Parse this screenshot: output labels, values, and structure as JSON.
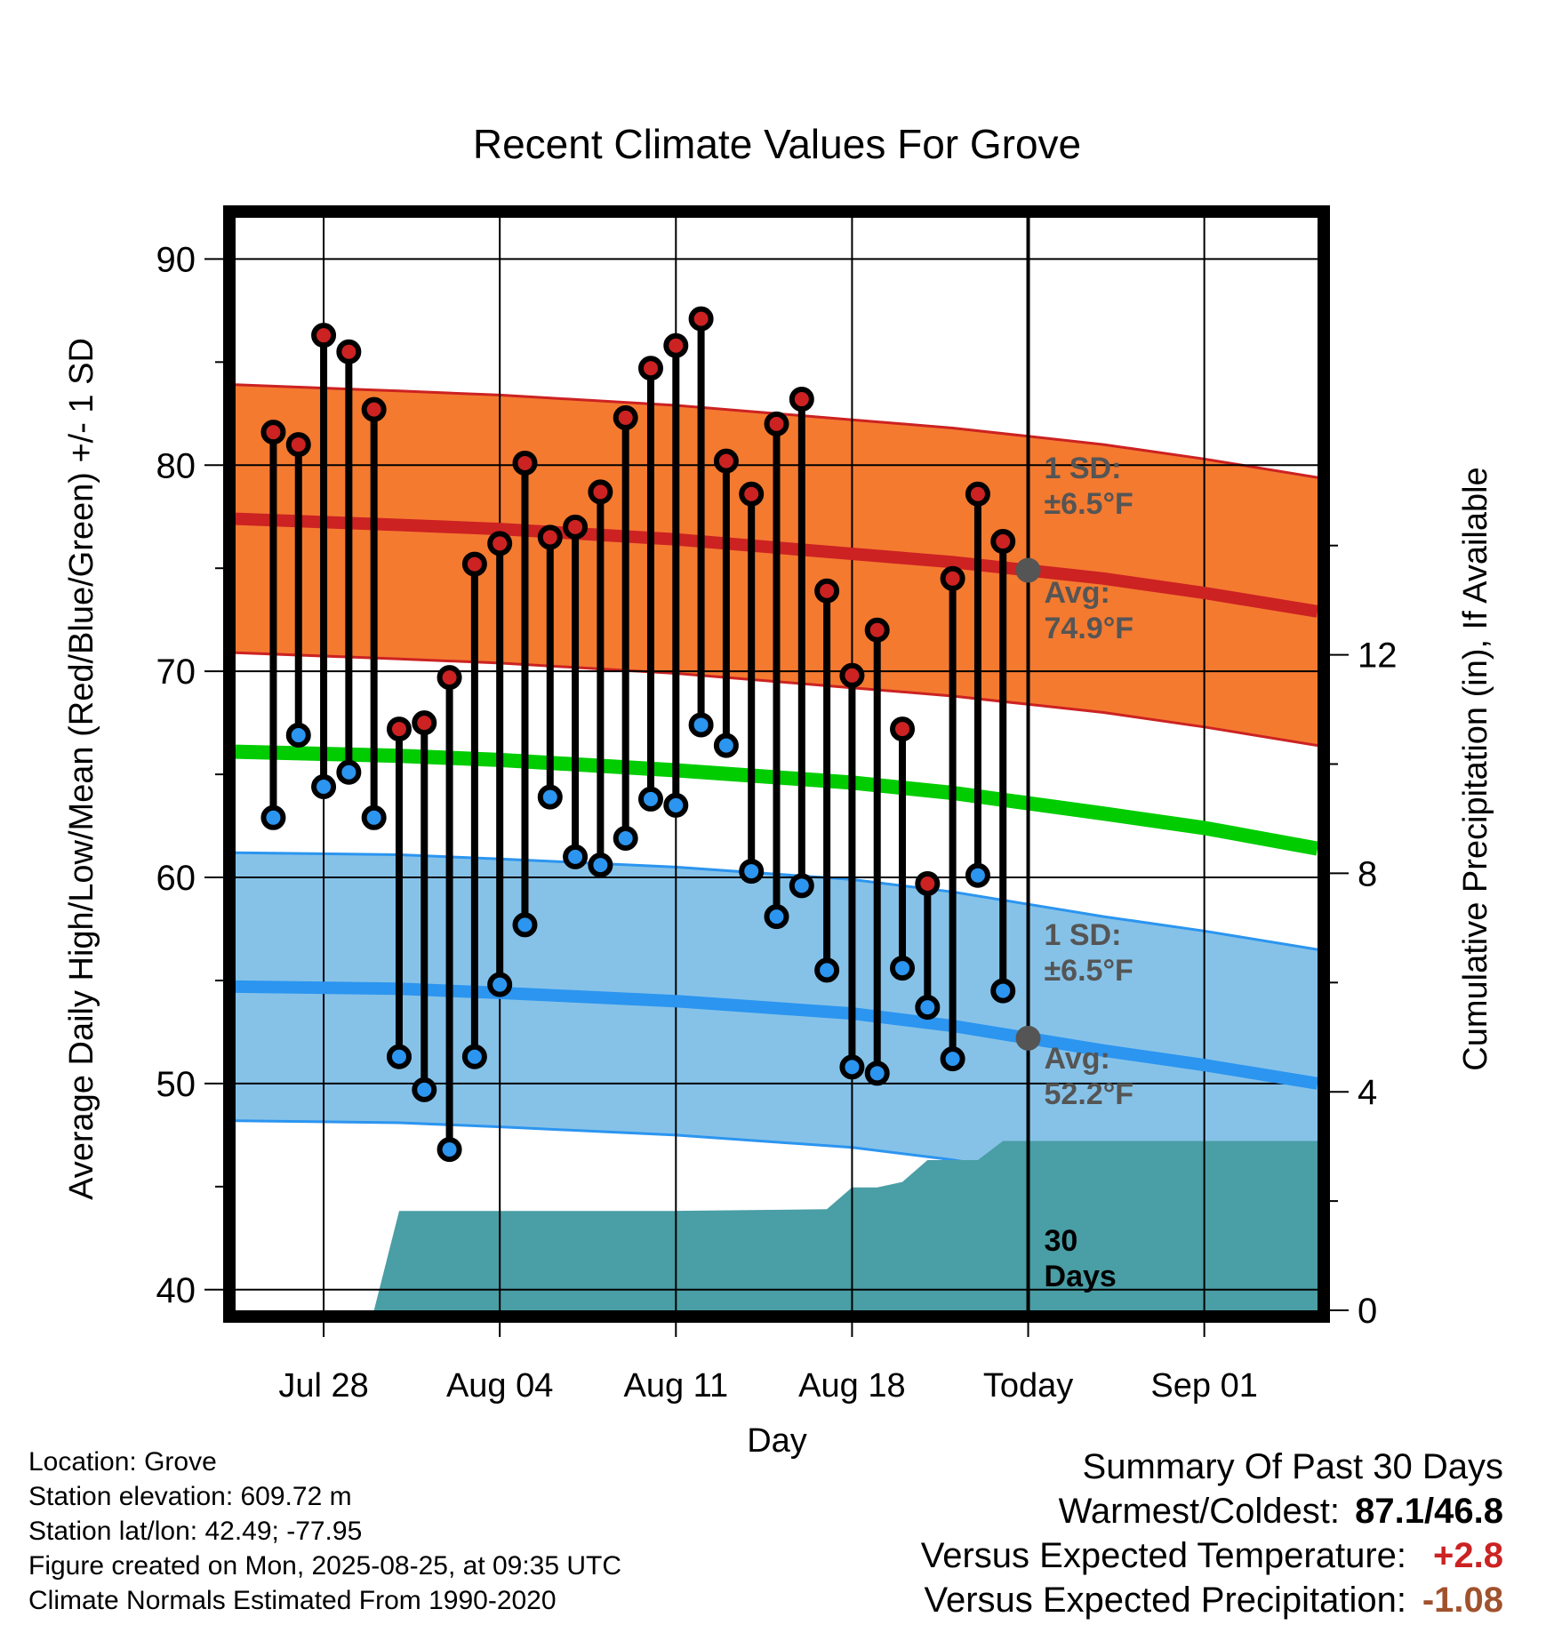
{
  "chart_data": {
    "type": "line",
    "title": "Recent Climate Values For Grove",
    "xlabel": "Day",
    "ylabel": "Average Daily High/Low/Mean (Red/Blue/Green) +/- 1 SD",
    "y2label": "Cumulative Precipitation (in), If Available",
    "ylim": [
      39,
      92
    ],
    "y2lim": [
      0,
      20
    ],
    "yticks": [
      40,
      50,
      60,
      70,
      80,
      90
    ],
    "y2ticks": [
      0,
      4,
      8,
      12
    ],
    "xlim": [
      -3.5,
      39.5
    ],
    "xticks": [
      {
        "day": 0,
        "label": "Jul 28"
      },
      {
        "day": 7,
        "label": "Aug 04"
      },
      {
        "day": 14,
        "label": "Aug 11"
      },
      {
        "day": 21,
        "label": "Aug 18"
      },
      {
        "day": 28,
        "label": "Today"
      },
      {
        "day": 35,
        "label": "Sep 01"
      }
    ],
    "today_day": 28,
    "grid": true,
    "daily": {
      "x": [
        -2,
        -1,
        0,
        1,
        2,
        3,
        4,
        5,
        6,
        7,
        8,
        9,
        10,
        11,
        12,
        13,
        14,
        15,
        16,
        17,
        18,
        19,
        20,
        21,
        22,
        23,
        24,
        25,
        26,
        27
      ],
      "high": [
        81.6,
        81.0,
        86.3,
        85.5,
        82.7,
        67.2,
        67.5,
        69.7,
        75.2,
        76.2,
        80.1,
        76.5,
        77.0,
        78.7,
        82.3,
        84.7,
        85.8,
        87.1,
        80.2,
        78.6,
        82.0,
        83.2,
        73.9,
        69.8,
        72.0,
        67.2,
        59.7,
        74.5,
        78.6,
        76.3
      ],
      "low": [
        62.9,
        66.9,
        64.4,
        65.1,
        62.9,
        51.3,
        49.7,
        46.8,
        51.3,
        54.8,
        57.7,
        63.9,
        61.0,
        60.6,
        61.9,
        63.8,
        63.5,
        67.4,
        66.4,
        60.3,
        58.1,
        59.6,
        55.5,
        50.8,
        50.5,
        55.6,
        53.7,
        51.2,
        60.1,
        54.5
      ]
    },
    "normals": {
      "x": [
        -3.5,
        3,
        7,
        14,
        21,
        25,
        28,
        31,
        35,
        39.5
      ],
      "avg_high": [
        77.4,
        77.1,
        76.9,
        76.4,
        75.7,
        75.3,
        74.9,
        74.5,
        73.8,
        72.9
      ],
      "avg_low": [
        54.7,
        54.6,
        54.4,
        54.0,
        53.4,
        52.8,
        52.2,
        51.6,
        50.9,
        50.0
      ],
      "avg_mean": [
        66.1,
        65.9,
        65.7,
        65.2,
        64.6,
        64.1,
        63.6,
        63.1,
        62.4,
        61.4
      ],
      "high_sd": 6.5,
      "low_sd": 6.5
    },
    "precip": {
      "x": [
        -3.5,
        2,
        3,
        14,
        20,
        21,
        22,
        23,
        24,
        25,
        26,
        27,
        39.5
      ],
      "cumulative": [
        0,
        0,
        1.82,
        1.82,
        1.85,
        2.25,
        2.25,
        2.35,
        2.75,
        2.75,
        2.75,
        3.1,
        3.1
      ]
    },
    "annotations": [
      {
        "line1": "1 SD:",
        "line2": "±6.5°F"
      },
      {
        "line1": "Avg:",
        "line2": "74.9°F"
      },
      {
        "line1": "1 SD:",
        "line2": "±6.5°F"
      },
      {
        "line1": "Avg:",
        "line2": "52.2°F"
      },
      {
        "line1": "30",
        "line2": "Days"
      }
    ],
    "colors": {
      "high": "#cc2222",
      "low": "#2b95f0",
      "mean": "#00cc00",
      "high_band": "#f47a30",
      "low_band": "#86c2e8",
      "precip": "#4a9ea5",
      "annotation": "#555555"
    }
  },
  "info": {
    "location": "Location: Grove",
    "elevation": "Station elevation: 609.72 m",
    "latlon": "Station lat/lon: 42.49; -77.95",
    "created": "Figure created on Mon, 2025-08-25, at 09:35 UTC",
    "normals": "Climate Normals Estimated From 1990-2020"
  },
  "summary": {
    "title": "Summary Of Past 30 Days",
    "warmest_label": "Warmest/Coldest:",
    "warmest_value": "87.1/46.8",
    "temp_label": "Versus Expected Temperature:",
    "temp_value": "+2.8",
    "temp_color": "#cc2222",
    "precip_label": "Versus Expected Precipitation:",
    "precip_value": "-1.08",
    "precip_color": "#a0522d"
  }
}
